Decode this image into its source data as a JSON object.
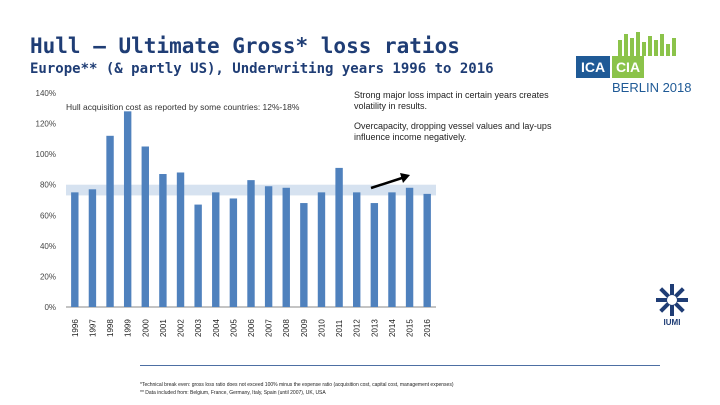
{
  "header": {
    "title": "Hull – Ultimate Gross* loss ratios",
    "subtitle": "Europe** (& partly US), Underwriting years 1996 to 2016"
  },
  "logo": {
    "left": "ICA",
    "right": "CIA",
    "event": "BERLIN 2018"
  },
  "badge": {
    "label": "IUMI"
  },
  "annotations": {
    "acquisition_note": "Hull acquisition cost as reported by some countries: 12%-18%",
    "box_line1": "Strong major loss impact in certain years creates volatility in results.",
    "box_line2": "Overcapacity, dropping vessel values and lay-ups influence income negatively."
  },
  "footnotes": {
    "line1": "*Technical break even: gross loss ratio does not exceed 100% minus the expense ratio (acquisition cost, capital cost, management expenses)",
    "line2": "** Data included from: Belgium, France, Germany, Italy, Spain (until 2007), UK, USA"
  },
  "colors": {
    "bar": "#4f81bd",
    "band": "#d6e2f0",
    "title": "#1f3d75",
    "arrow": "#000000"
  },
  "chart_data": {
    "type": "bar",
    "title": "Hull – Ultimate Gross* loss ratios",
    "categories": [
      "1996",
      "1997",
      "1998",
      "1999",
      "2000",
      "2001",
      "2002",
      "2003",
      "2004",
      "2005",
      "2006",
      "2007",
      "2008",
      "2009",
      "2010",
      "2011",
      "2012",
      "2013",
      "2014",
      "2015",
      "2016"
    ],
    "values": [
      75,
      77,
      112,
      128,
      105,
      87,
      88,
      67,
      75,
      71,
      83,
      79,
      78,
      68,
      75,
      91,
      75,
      68,
      75,
      78,
      74
    ],
    "yticks": [
      "0%",
      "20%",
      "40%",
      "60%",
      "80%",
      "100%",
      "120%",
      "140%"
    ],
    "ylim": [
      0,
      140
    ],
    "benchmark_band": [
      73,
      80
    ],
    "xlabel": "",
    "ylabel": "",
    "grid": false,
    "legend": "none"
  }
}
